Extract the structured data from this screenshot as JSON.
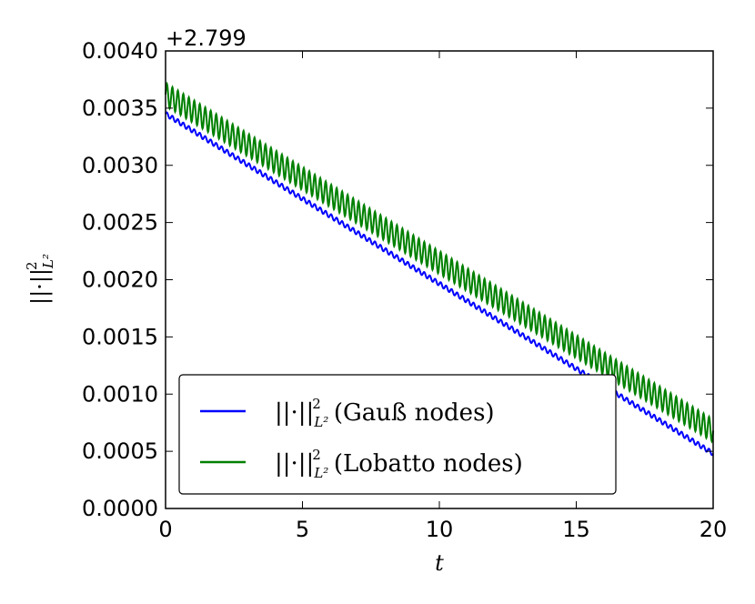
{
  "chart_data": {
    "type": "line",
    "title": "",
    "xlabel": "t",
    "ylabel": "||·||²_{L²}",
    "ylabel_base": "||·||",
    "ylabel_sup": "2",
    "ylabel_sub": "L²",
    "y_offset_label": "+2.799",
    "xlim": [
      0,
      20
    ],
    "ylim": [
      0.0,
      0.004
    ],
    "x_ticks": [
      "0",
      "5",
      "10",
      "15",
      "20"
    ],
    "y_ticks": [
      "0.0000",
      "0.0005",
      "0.0010",
      "0.0015",
      "0.0020",
      "0.0025",
      "0.0030",
      "0.0035",
      "0.0040"
    ],
    "grid": false,
    "legend_position": "lower-left",
    "series": [
      {
        "name": "||·||²_{L²} (Gauß nodes)",
        "legend_norm": "||·||",
        "legend_sup": "2",
        "legend_sub": "L²",
        "legend_suffix": "(Gauß nodes)",
        "color": "#0000ff",
        "x": [
          0,
          20
        ],
        "y": [
          0.00345,
          0.00048
        ],
        "oscillation_amplitude": 2e-05,
        "oscillation_period": 0.2
      },
      {
        "name": "||·||²_{L²} (Lobatto nodes)",
        "legend_norm": "||·||",
        "legend_sup": "2",
        "legend_sub": "L²",
        "legend_suffix": "(Lobatto nodes)",
        "color": "#008000",
        "x": [
          0,
          20
        ],
        "y": [
          0.00362,
          0.00068
        ],
        "oscillation_amplitude": 0.0001,
        "oscillation_period": 0.2
      }
    ]
  }
}
